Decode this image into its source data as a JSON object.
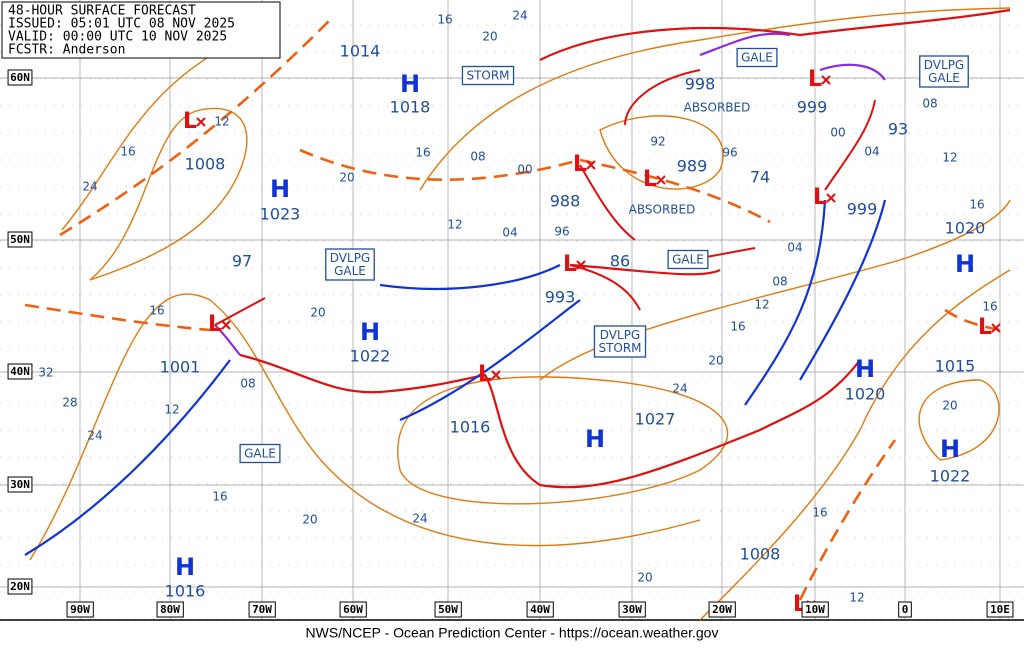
{
  "header": {
    "lines": [
      "48-HOUR SURFACE FORECAST",
      "ISSUED: 05:01 UTC 08 NOV 2025",
      "VALID: 00:00 UTC 10 NOV 2025",
      "FCSTR: Anderson"
    ]
  },
  "highs": [
    {
      "symbol": "H",
      "pressure": "1018"
    },
    {
      "symbol": "H",
      "pressure": "1023"
    },
    {
      "symbol": "H",
      "pressure": "1022"
    },
    {
      "symbol": "H",
      "pressure": "1027"
    },
    {
      "symbol": "H",
      "pressure": "1020"
    },
    {
      "symbol": "H",
      "pressure": "1020"
    },
    {
      "symbol": "H",
      "pressure": "1022"
    },
    {
      "symbol": "H",
      "pressure": "1016"
    }
  ],
  "lows": [
    {
      "symbol": "L",
      "pressure": "1008"
    },
    {
      "symbol": "L",
      "pressure": "1001"
    },
    {
      "symbol": "L",
      "pressure": "1016"
    },
    {
      "symbol": "L",
      "pressure": "993"
    },
    {
      "symbol": "L",
      "pressure": "988"
    },
    {
      "symbol": "L",
      "pressure": "989"
    },
    {
      "symbol": "L",
      "pressure": "999"
    },
    {
      "symbol": "L",
      "pressure": "999"
    },
    {
      "symbol": "L",
      "pressure": "1015"
    },
    {
      "symbol": "L",
      "pressure": "1008"
    }
  ],
  "other_pressures": [
    "1014",
    "998",
    "97",
    "86",
    "74",
    "93"
  ],
  "notes": [
    "ABSORBED",
    "ABSORBED"
  ],
  "warnings": [
    [
      "GALE"
    ],
    [
      "GALE"
    ],
    [
      "GALE"
    ],
    [
      "STORM"
    ],
    [
      "DVLPG",
      "GALE"
    ],
    [
      "DVLPG",
      "STORM"
    ],
    [
      "DVLPG",
      "GALE"
    ]
  ],
  "isobar_labels": [
    "16",
    "20",
    "24",
    "12",
    "16",
    "24",
    "16",
    "20",
    "08",
    "00",
    "92",
    "96",
    "12",
    "04",
    "96",
    "08",
    "12",
    "16",
    "00",
    "04",
    "04",
    "08",
    "12",
    "16",
    "20",
    "24",
    "20",
    "16",
    "32",
    "28",
    "24",
    "12",
    "08",
    "16",
    "20",
    "24",
    "20",
    "16",
    "12",
    "20",
    "16"
  ],
  "latitude_labels": [
    "60N",
    "50N",
    "40N",
    "30N",
    "20N"
  ],
  "longitude_labels": [
    "90W",
    "80W",
    "70W",
    "60W",
    "50W",
    "40W",
    "30W",
    "20W",
    "10W",
    "0",
    "10E"
  ],
  "footer": "NWS/NCEP - Ocean Prediction Center - https://ocean.weather.gov"
}
